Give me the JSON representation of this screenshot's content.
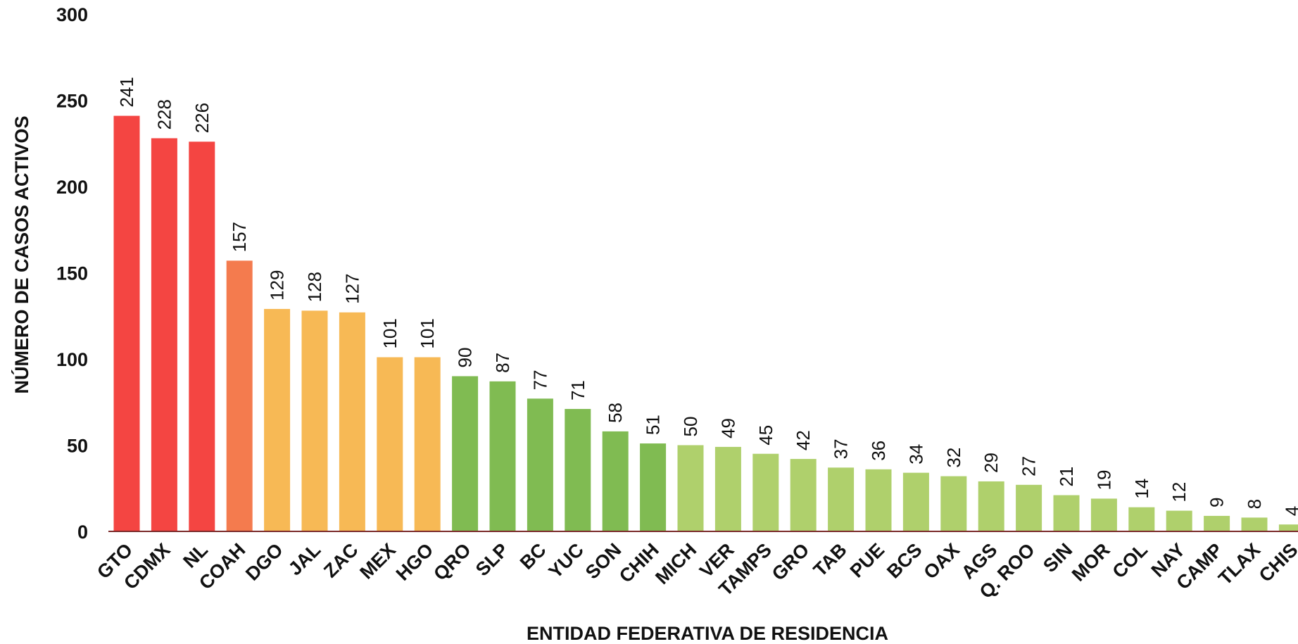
{
  "chart_data": {
    "type": "bar",
    "xlabel": "ENTIDAD FEDERATIVA DE RESIDENCIA",
    "ylabel": "NÚMERO DE CASOS ACTIVOS",
    "ylim": [
      0,
      300
    ],
    "yticks": [
      0,
      50,
      100,
      150,
      200,
      250,
      300
    ],
    "grid": false,
    "legend": "none",
    "axis_color": "#7a2a2a",
    "categories": [
      "GTO",
      "CDMX",
      "NL",
      "COAH",
      "DGO",
      "JAL",
      "ZAC",
      "MEX",
      "HGO",
      "QRO",
      "SLP",
      "BC",
      "YUC",
      "SON",
      "CHIH",
      "MICH",
      "VER",
      "TAMPS",
      "GRO",
      "TAB",
      "PUE",
      "BCS",
      "OAX",
      "AGS",
      "Q. ROO",
      "SIN",
      "MOR",
      "COL",
      "NAY",
      "CAMP",
      "TLAX",
      "CHIS"
    ],
    "values": [
      241,
      228,
      226,
      157,
      129,
      128,
      127,
      101,
      101,
      90,
      87,
      77,
      71,
      58,
      51,
      50,
      49,
      45,
      42,
      37,
      36,
      34,
      32,
      29,
      27,
      21,
      19,
      14,
      12,
      9,
      8,
      4
    ],
    "colors": [
      "#f44542",
      "#f44542",
      "#f44542",
      "#f47b4e",
      "#f7b955",
      "#f7b955",
      "#f7b955",
      "#f7b955",
      "#f7b955",
      "#80bb52",
      "#80bb52",
      "#80bb52",
      "#80bb52",
      "#80bb52",
      "#80bb52",
      "#afd06c",
      "#afd06c",
      "#afd06c",
      "#afd06c",
      "#afd06c",
      "#afd06c",
      "#afd06c",
      "#afd06c",
      "#afd06c",
      "#afd06c",
      "#afd06c",
      "#afd06c",
      "#afd06c",
      "#afd06c",
      "#afd06c",
      "#afd06c",
      "#afd06c"
    ]
  }
}
